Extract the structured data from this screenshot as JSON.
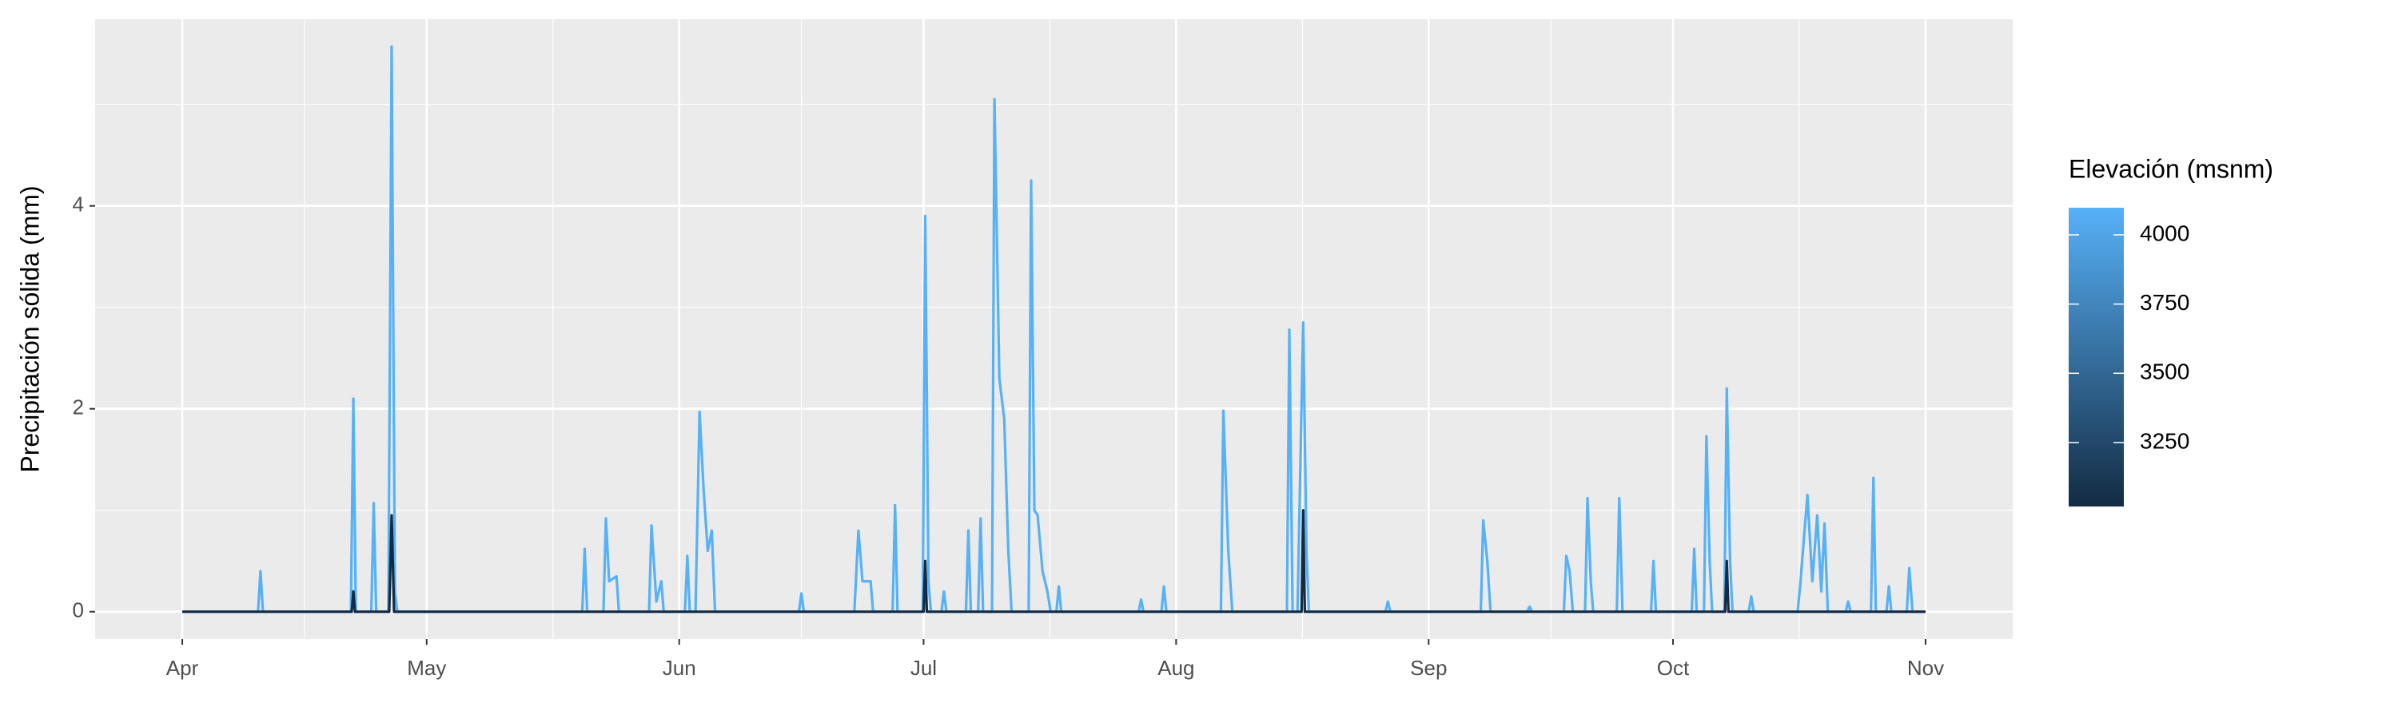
{
  "chart_data": {
    "type": "line",
    "y_label": "Precipitación sólida (mm)",
    "xlim": [
      -10.7,
      224.7
    ],
    "xticks": [
      {
        "value": 0,
        "label": "Apr"
      },
      {
        "value": 30,
        "label": "May"
      },
      {
        "value": 61,
        "label": "Jun"
      },
      {
        "value": 91,
        "label": "Jul"
      },
      {
        "value": 122,
        "label": "Aug"
      },
      {
        "value": 153,
        "label": "Sep"
      },
      {
        "value": 183,
        "label": "Oct"
      },
      {
        "value": 214,
        "label": "Nov"
      }
    ],
    "ylim": [
      -0.27,
      5.84
    ],
    "yticks": [
      0,
      2,
      4
    ],
    "grid": true,
    "colorbar": {
      "title": "Elevación (msnm)",
      "limits": [
        3019,
        4098
      ],
      "ticks": [
        3250,
        3500,
        3750,
        4000
      ],
      "low": "#132B43",
      "high": "#56B1F7"
    },
    "series": [
      {
        "color": "#56B1F7",
        "x": [
          0,
          9.3,
          9.6,
          9.9,
          20.7,
          21,
          21.3,
          23.2,
          23.5,
          23.8,
          25.3,
          25.7,
          26.1,
          26.4,
          49.1,
          49.4,
          49.7,
          51.7,
          52,
          52.4,
          53.3,
          53.6,
          57.3,
          57.6,
          58.2,
          58.8,
          59.1,
          61.7,
          62,
          62.3,
          63,
          63.5,
          64,
          64.5,
          65,
          65.4,
          75.7,
          76,
          76.3,
          82.5,
          83,
          83.5,
          84.5,
          84.8,
          87.2,
          87.5,
          87.8,
          90.9,
          91.2,
          91.6,
          91.9,
          93.2,
          93.5,
          93.8,
          96.2,
          96.5,
          96.8,
          97.7,
          98,
          98.3,
          99.4,
          99.7,
          100.3,
          100.9,
          101.4,
          101.8,
          103.9,
          104.2,
          104.6,
          105,
          105.6,
          106.2,
          106.6,
          107.3,
          107.6,
          107.9,
          117.4,
          117.7,
          118,
          120.2,
          120.5,
          120.8,
          127.5,
          127.8,
          128.4,
          128.9,
          135.6,
          135.9,
          136.3,
          136.9,
          137.6,
          138,
          138.3,
          147.7,
          148,
          148.3,
          159.4,
          159.7,
          160.2,
          160.6,
          165.1,
          165.4,
          165.7,
          169.6,
          169.9,
          170.3,
          170.7,
          172.2,
          172.5,
          172.9,
          173.2,
          176.1,
          176.4,
          176.8,
          180.3,
          180.6,
          180.9,
          185.3,
          185.6,
          185.9,
          186.8,
          187.1,
          187.5,
          187.8,
          189.3,
          189.6,
          190,
          190.3,
          192.3,
          192.6,
          192.9,
          198.3,
          198.6,
          199.5,
          200.1,
          200.7,
          201.2,
          201.6,
          202,
          204.2,
          204.5,
          204.8,
          207.3,
          207.6,
          207.9,
          209.2,
          209.5,
          209.8,
          211.7,
          212,
          212.4,
          214
        ],
        "values": [
          0,
          0,
          0.4,
          0,
          0,
          2.1,
          0,
          0,
          1.07,
          0,
          0,
          5.57,
          0.2,
          0,
          0,
          0.62,
          0,
          0,
          0.92,
          0.3,
          0.35,
          0,
          0,
          0.85,
          0.1,
          0.3,
          0,
          0,
          0.55,
          0,
          0,
          1.97,
          1.2,
          0.6,
          0.8,
          0,
          0,
          0.18,
          0,
          0,
          0.8,
          0.3,
          0.3,
          0,
          0,
          1.05,
          0,
          0,
          3.9,
          0.3,
          0,
          0,
          0.2,
          0,
          0,
          0.8,
          0,
          0,
          0.92,
          0,
          0,
          5.05,
          2.3,
          1.9,
          0.6,
          0,
          0,
          4.25,
          1,
          0.95,
          0.4,
          0.2,
          0,
          0,
          0.25,
          0,
          0,
          0.12,
          0,
          0,
          0.25,
          0,
          0,
          1.98,
          0.6,
          0,
          0,
          2.78,
          0,
          0,
          2.85,
          0.6,
          0,
          0,
          0.1,
          0,
          0,
          0.9,
          0.5,
          0,
          0,
          0.05,
          0,
          0,
          0.55,
          0.4,
          0,
          0,
          1.12,
          0.3,
          0,
          0,
          1.12,
          0,
          0,
          0.5,
          0,
          0,
          0.62,
          0,
          0,
          1.73,
          0.5,
          0,
          0,
          2.2,
          0.5,
          0,
          0,
          0.15,
          0,
          0,
          0.25,
          1.15,
          0.3,
          0.95,
          0.2,
          0.87,
          0,
          0,
          0.1,
          0,
          0,
          1.32,
          0,
          0,
          0.25,
          0,
          0,
          0.43,
          0,
          0
        ]
      },
      {
        "color": "#132B43",
        "x": [
          0,
          20.8,
          21,
          21.2,
          25.4,
          25.7,
          26,
          91,
          91.2,
          91.4,
          137.4,
          137.6,
          137.8,
          189.4,
          189.6,
          189.8,
          214
        ],
        "values": [
          0,
          0,
          0.2,
          0,
          0,
          0.95,
          0,
          0,
          0.5,
          0,
          0,
          1.0,
          0,
          0,
          0.5,
          0,
          0
        ]
      }
    ]
  }
}
